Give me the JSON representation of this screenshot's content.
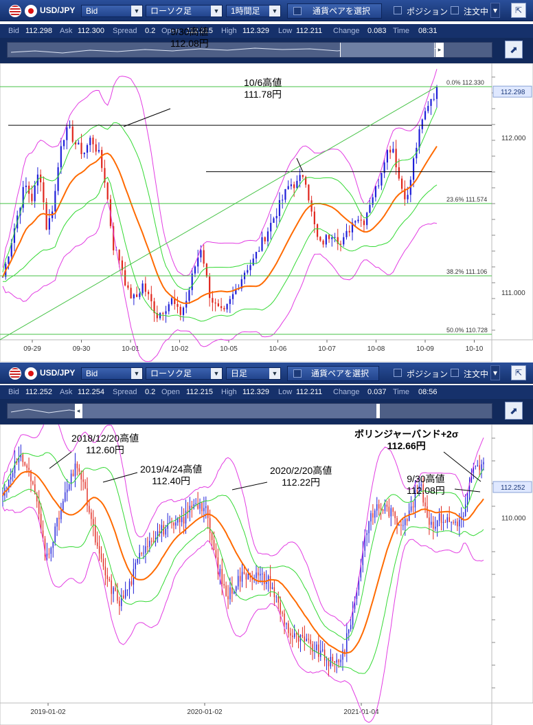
{
  "top": {
    "pair": "USD/JPY",
    "price_type": "Bid",
    "chart_type": "ローソク足",
    "timeframe": "1時間足",
    "pair_select": "通貨ペアを選択",
    "position": "ポジション",
    "orders": "注文中",
    "quote": {
      "bid_label": "Bid",
      "bid": "112.298",
      "ask_label": "Ask",
      "ask": "112.300",
      "spread_label": "Spread",
      "spread": "0.2",
      "open_label": "Open",
      "open": "112.215",
      "high_label": "High",
      "high": "112.329",
      "low_label": "Low",
      "low": "112.211",
      "change_label": "Change",
      "change": "0.083",
      "time_label": "Time",
      "time": "08:31"
    },
    "price_marker": "112.298",
    "annotations": [
      {
        "line1": "9/30高値",
        "line2": "112.08円"
      },
      {
        "line1": "10/6高値",
        "line2": "111.78円"
      }
    ]
  },
  "bottom": {
    "pair": "USD/JPY",
    "price_type": "Bid",
    "chart_type": "ローソク足",
    "timeframe": "日足",
    "pair_select": "通貨ペアを選択",
    "position": "ポジション",
    "orders": "注文中",
    "quote": {
      "bid_label": "Bid",
      "bid": "112.252",
      "ask_label": "Ask",
      "ask": "112.254",
      "spread_label": "Spread",
      "spread": "0.2",
      "open_label": "Open",
      "open": "112.215",
      "high_label": "High",
      "high": "112.329",
      "low_label": "Low",
      "low": "112.211",
      "change_label": "Change",
      "change": "0.037",
      "time_label": "Time",
      "time": "08:56"
    },
    "price_marker": "112.252",
    "annotations": [
      {
        "line1": "2018/12/20高値",
        "line2": "112.60円"
      },
      {
        "line1": "2019/4/24高値",
        "line2": "112.40円"
      },
      {
        "line1": "2020/2/20高値",
        "line2": "112.22円"
      },
      {
        "line1": "9/30高値",
        "line2": "112.08円"
      },
      {
        "line1": "ボリンジャーバンド+2σ",
        "line2": "112.66円"
      }
    ]
  },
  "colors": {
    "bull": "#1f1fd8",
    "bear": "#e0261d",
    "ma": "#ff6a00",
    "band1": "#33d933",
    "band2": "#e23be2",
    "fib": "#44c244",
    "level": "#000000"
  },
  "chart_data": [
    {
      "type": "candlestick",
      "title": "",
      "timeframe": "1時間足",
      "x_ticks": [
        "09-29",
        "09-30",
        "10-01",
        "10-02",
        "10-05",
        "10-06",
        "10-07",
        "10-08",
        "10-09",
        "10-10"
      ],
      "y_ticks": [
        111.0,
        112.0
      ],
      "ylim": [
        110.7,
        112.4
      ],
      "fibonacci": [
        {
          "label": "0.0%",
          "value": 112.33
        },
        {
          "label": "23.6%",
          "value": 111.574
        },
        {
          "label": "38.2%",
          "value": 111.106
        },
        {
          "label": "50.0%",
          "value": 110.728
        }
      ],
      "horizontal_lines": [
        112.08,
        111.78
      ],
      "close_path": [
        111.1,
        111.3,
        111.5,
        111.7,
        111.6,
        111.8,
        111.4,
        111.6,
        112.0,
        112.05,
        111.95,
        111.9,
        112.0,
        111.9,
        111.7,
        111.3,
        111.2,
        111.0,
        110.95,
        111.05,
        110.95,
        110.85,
        110.9,
        110.95,
        110.85,
        110.95,
        111.15,
        111.3,
        111.0,
        110.9,
        110.85,
        110.95,
        111.05,
        111.15,
        111.2,
        111.3,
        111.4,
        111.5,
        111.6,
        111.7,
        111.7,
        111.78,
        111.5,
        111.3,
        111.35,
        111.4,
        111.3,
        111.4,
        111.5,
        111.45,
        111.6,
        111.7,
        111.9,
        111.95,
        111.7,
        111.6,
        111.9,
        112.1,
        112.25,
        112.3
      ],
      "moving_average": {
        "label": "",
        "values": [
          110.95,
          111.2,
          111.45,
          111.6,
          111.75,
          111.85,
          111.9,
          111.85,
          111.7,
          111.5,
          111.3,
          111.15,
          111.05,
          110.98,
          110.98,
          111.05,
          111.2,
          111.35,
          111.5,
          111.55,
          111.5,
          111.45,
          111.5,
          111.6,
          111.7,
          111.95
        ]
      },
      "bollinger": {
        "upper2_peak": 112.35,
        "lower2_trough": 110.8
      },
      "last_price": 112.298
    },
    {
      "type": "candlestick",
      "title": "",
      "timeframe": "日足",
      "x_ticks": [
        "2019-01-02",
        "2020-01-02",
        "2021-01-04"
      ],
      "y_ticks": [
        110.0
      ],
      "highs": [
        {
          "label": "2018/12/20高値",
          "value": 112.6
        },
        {
          "label": "2019/4/24高値",
          "value": 112.4
        },
        {
          "label": "2020/2/20高値",
          "value": 112.22
        },
        {
          "label": "9/30高値",
          "value": 112.08
        }
      ],
      "bollinger_upper_2sigma": {
        "label": "ボリンジャーバンド+2σ",
        "value": 112.66
      },
      "last_price": 112.252
    }
  ]
}
